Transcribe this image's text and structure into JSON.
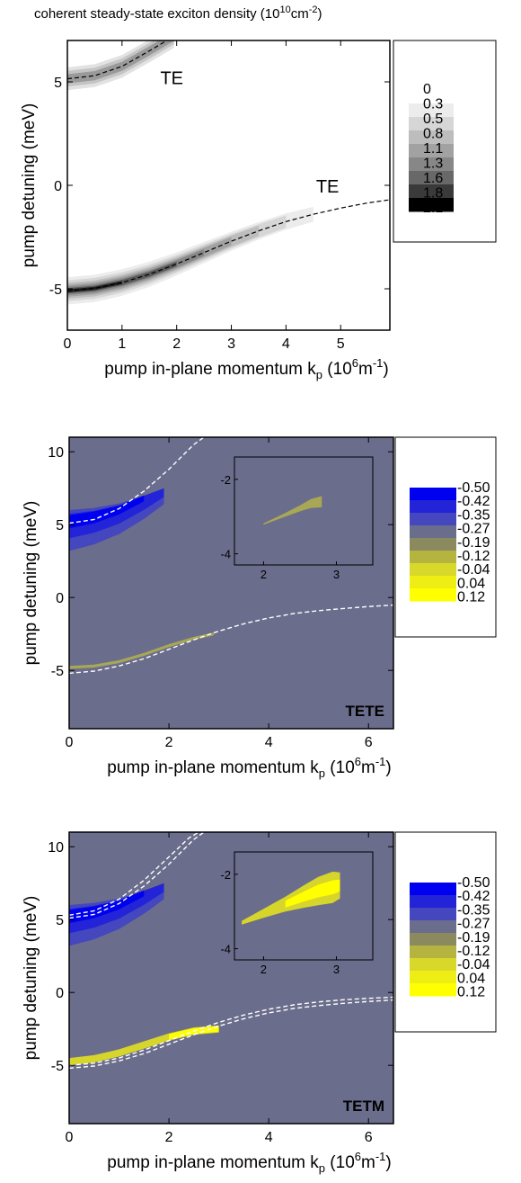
{
  "chart_data": [
    {
      "type": "heatmap",
      "title": "coherent steady-state exciton density (10",
      "title_exp": "10",
      "title_unit": "cm",
      "title_unit_exp": "-2",
      "title_close": ")",
      "xlabel": "pump in-plane momentum k",
      "xlabel_sub": "p",
      "xlabel_unit_open": " (10",
      "xlabel_unit_exp": "6",
      "xlabel_unit": "m",
      "xlabel_unit_exp2": "-1",
      "xlabel_close": ")",
      "ylabel": "pump detuning (meV)",
      "xlim": [
        0,
        5.9
      ],
      "ylim": [
        -7,
        7
      ],
      "xticks": [
        "0",
        "1",
        "2",
        "3",
        "4",
        "5"
      ],
      "xtick_values": [
        0,
        1,
        2,
        3,
        4,
        5
      ],
      "yticks": [
        "-5",
        "0",
        "5"
      ],
      "ytick_values": [
        -5,
        0,
        5
      ],
      "legend_levels": [
        "0",
        "0.3",
        "0.5",
        "0.8",
        "1.1",
        "1.3",
        "1.6",
        "1.8",
        "2.1"
      ],
      "legend_colors": [
        "#ffffff",
        "#ececec",
        "#d6d6d6",
        "#bdbdbd",
        "#a2a2a2",
        "#878787",
        "#686868",
        "#3a3a3a",
        "#000000"
      ],
      "annotations": [
        "TE",
        "TE"
      ],
      "lower_branch": {
        "x": [
          0,
          0.5,
          1,
          1.5,
          2,
          2.5,
          3,
          3.5,
          4,
          4.5,
          5,
          5.5,
          5.9
        ],
        "y": [
          -5.1,
          -4.98,
          -4.7,
          -4.3,
          -3.8,
          -3.25,
          -2.7,
          -2.2,
          -1.75,
          -1.4,
          -1.1,
          -0.85,
          -0.7
        ]
      },
      "upper_branch": {
        "x": [
          0,
          0.5,
          1,
          1.5,
          1.95
        ],
        "y": [
          5.15,
          5.3,
          5.75,
          6.5,
          7.2
        ]
      },
      "lower_band": {
        "x": [
          0,
          0.5,
          1,
          1.5,
          2,
          2.5,
          3,
          3.5,
          4,
          4.5
        ],
        "y": [
          -5.1,
          -4.98,
          -4.7,
          -4.3,
          -3.8,
          -3.25,
          -2.7,
          -2.2,
          -1.75,
          -1.4
        ],
        "weights": [
          1,
          1,
          0.95,
          0.85,
          0.7,
          0.55,
          0.4,
          0.28,
          0.18,
          0.1
        ]
      },
      "upper_band": {
        "x": [
          0,
          0.5,
          1,
          1.5,
          1.95
        ],
        "y": [
          5.15,
          5.3,
          5.75,
          6.5,
          7.2
        ],
        "weights": [
          0.55,
          0.5,
          0.45,
          0.4,
          0.35
        ]
      }
    },
    {
      "type": "heatmap",
      "xlabel": "pump in-plane momentum k",
      "xlabel_sub": "p",
      "xlabel_unit_open": " (10",
      "xlabel_unit_exp": "6",
      "xlabel_unit": "m",
      "xlabel_unit_exp2": "-1",
      "xlabel_close": ")",
      "ylabel": "pump detuning (meV)",
      "xlim": [
        0,
        6.5
      ],
      "ylim": [
        -9,
        11
      ],
      "xticks": [
        "0",
        "2",
        "4",
        "6"
      ],
      "xtick_values": [
        0,
        2,
        4,
        6
      ],
      "yticks": [
        "-5",
        "0",
        "5",
        "10"
      ],
      "ytick_values": [
        -5,
        0,
        5,
        10
      ],
      "background": "#6b6d8c",
      "legend_levels": [
        "-0.50",
        "-0.42",
        "-0.35",
        "-0.27",
        "-0.19",
        "-0.12",
        "-0.04",
        "0.04",
        "0.12"
      ],
      "legend_colors": [
        "#0000f0",
        "#2323d8",
        "#4447bd",
        "#6b6d8c",
        "#8b8a5e",
        "#b5b440",
        "#d8d82a",
        "#eeee14",
        "#ffff00"
      ],
      "annotation": "TETE",
      "dashed_lower": [
        {
          "x": [
            0,
            0.5,
            1,
            1.5,
            2,
            2.5,
            3,
            3.5,
            4,
            4.5,
            5,
            5.5,
            6,
            6.5
          ],
          "y": [
            -5.2,
            -5.05,
            -4.7,
            -4.2,
            -3.55,
            -2.9,
            -2.3,
            -1.8,
            -1.4,
            -1.1,
            -0.9,
            -0.75,
            -0.62,
            -0.52
          ]
        }
      ],
      "dashed_upper": [
        {
          "x": [
            0,
            0.5,
            1,
            1.5,
            2,
            2.5,
            2.7
          ],
          "y": [
            5.1,
            5.35,
            6.1,
            7.3,
            8.8,
            10.5,
            11
          ]
        }
      ],
      "blue_band": {
        "x": [
          0,
          0.5,
          1,
          1.5,
          1.9
        ],
        "y": [
          5.2,
          5.5,
          6.0,
          6.8,
          7.5
        ]
      },
      "yellow_band": {
        "x": [
          0,
          0.5,
          1,
          1.5,
          2,
          2.5,
          2.9
        ],
        "y": [
          -4.8,
          -4.7,
          -4.4,
          -3.9,
          -3.3,
          -2.8,
          -2.5
        ],
        "width": 0.1,
        "color": "#a8a755"
      },
      "inset": {
        "xlim": [
          1.6,
          3.5
        ],
        "ylim": [
          -4.3,
          -1.4
        ],
        "xticks": [
          "2",
          "3"
        ],
        "xtick_values": [
          2,
          3
        ],
        "yticks": [
          "-2",
          "-4"
        ],
        "ytick_values": [
          -2,
          -4
        ],
        "streak": {
          "x": [
            2.0,
            2.3,
            2.5,
            2.65,
            2.8
          ],
          "y": [
            -3.2,
            -2.95,
            -2.78,
            -2.65,
            -2.6
          ],
          "width": [
            0.02,
            0.05,
            0.08,
            0.12,
            0.15
          ]
        }
      }
    },
    {
      "type": "heatmap",
      "xlabel": "pump in-plane momentum k",
      "xlabel_sub": "p",
      "xlabel_unit_open": " (10",
      "xlabel_unit_exp": "6",
      "xlabel_unit": "m",
      "xlabel_unit_exp2": "-1",
      "xlabel_close": ")",
      "ylabel": "pump detuning (meV)",
      "xlim": [
        0,
        6.5
      ],
      "ylim": [
        -9,
        11
      ],
      "xticks": [
        "0",
        "2",
        "4",
        "6"
      ],
      "xtick_values": [
        0,
        2,
        4,
        6
      ],
      "yticks": [
        "-5",
        "0",
        "5",
        "10"
      ],
      "ytick_values": [
        -5,
        0,
        5,
        10
      ],
      "background": "#6b6d8c",
      "legend_levels": [
        "-0.50",
        "-0.42",
        "-0.35",
        "-0.27",
        "-0.19",
        "-0.12",
        "-0.04",
        "0.04",
        "0.12"
      ],
      "legend_colors": [
        "#0000f0",
        "#2323d8",
        "#4447bd",
        "#6b6d8c",
        "#8b8a5e",
        "#b5b440",
        "#d8d82a",
        "#eeee14",
        "#ffff00"
      ],
      "annotation": "TETM",
      "dashed_lower": [
        {
          "x": [
            0,
            0.5,
            1,
            1.5,
            2,
            2.5,
            3,
            3.5,
            4,
            4.5,
            5,
            5.5,
            6,
            6.5
          ],
          "y": [
            -5.2,
            -5.05,
            -4.7,
            -4.2,
            -3.55,
            -2.9,
            -2.3,
            -1.8,
            -1.4,
            -1.1,
            -0.9,
            -0.75,
            -0.62,
            -0.52
          ]
        },
        {
          "x": [
            0,
            0.5,
            1,
            1.5,
            2,
            2.5,
            3,
            3.5,
            4,
            4.5,
            5,
            5.5,
            6,
            6.5
          ],
          "y": [
            -5.0,
            -4.85,
            -4.5,
            -3.95,
            -3.3,
            -2.65,
            -2.05,
            -1.55,
            -1.15,
            -0.85,
            -0.65,
            -0.5,
            -0.4,
            -0.32
          ]
        }
      ],
      "dashed_upper": [
        {
          "x": [
            0,
            0.5,
            1,
            1.5,
            2,
            2.5,
            2.7
          ],
          "y": [
            5.1,
            5.35,
            6.1,
            7.3,
            8.8,
            10.5,
            11
          ]
        },
        {
          "x": [
            0,
            0.5,
            1,
            1.5,
            2,
            2.4,
            2.6
          ],
          "y": [
            5.3,
            5.6,
            6.4,
            7.7,
            9.3,
            10.6,
            11
          ]
        }
      ],
      "blue_band": {
        "x": [
          0,
          0.5,
          1,
          1.5,
          1.9
        ],
        "y": [
          5.2,
          5.5,
          6.0,
          6.8,
          7.5
        ]
      },
      "yellow_band": {
        "x": [
          0,
          0.5,
          1,
          1.5,
          2,
          2.5,
          3
        ],
        "y": [
          -4.75,
          -4.55,
          -4.15,
          -3.6,
          -3.05,
          -2.65,
          -2.5
        ],
        "width": 0.25,
        "color": "#d6d52c"
      },
      "inset": {
        "xlim": [
          1.6,
          3.5
        ],
        "ylim": [
          -4.3,
          -1.4
        ],
        "xticks": [
          "2",
          "3"
        ],
        "xtick_values": [
          2,
          3
        ],
        "yticks": [
          "-2",
          "-4"
        ],
        "ytick_values": [
          -2,
          -4
        ],
        "streak": {
          "x": [
            1.7,
            2.0,
            2.3,
            2.55,
            2.75,
            2.95,
            3.05
          ],
          "y": [
            -3.3,
            -3.05,
            -2.8,
            -2.6,
            -2.45,
            -2.35,
            -2.3
          ],
          "width": [
            0.05,
            0.12,
            0.2,
            0.3,
            0.38,
            0.42,
            0.35
          ]
        }
      }
    }
  ]
}
